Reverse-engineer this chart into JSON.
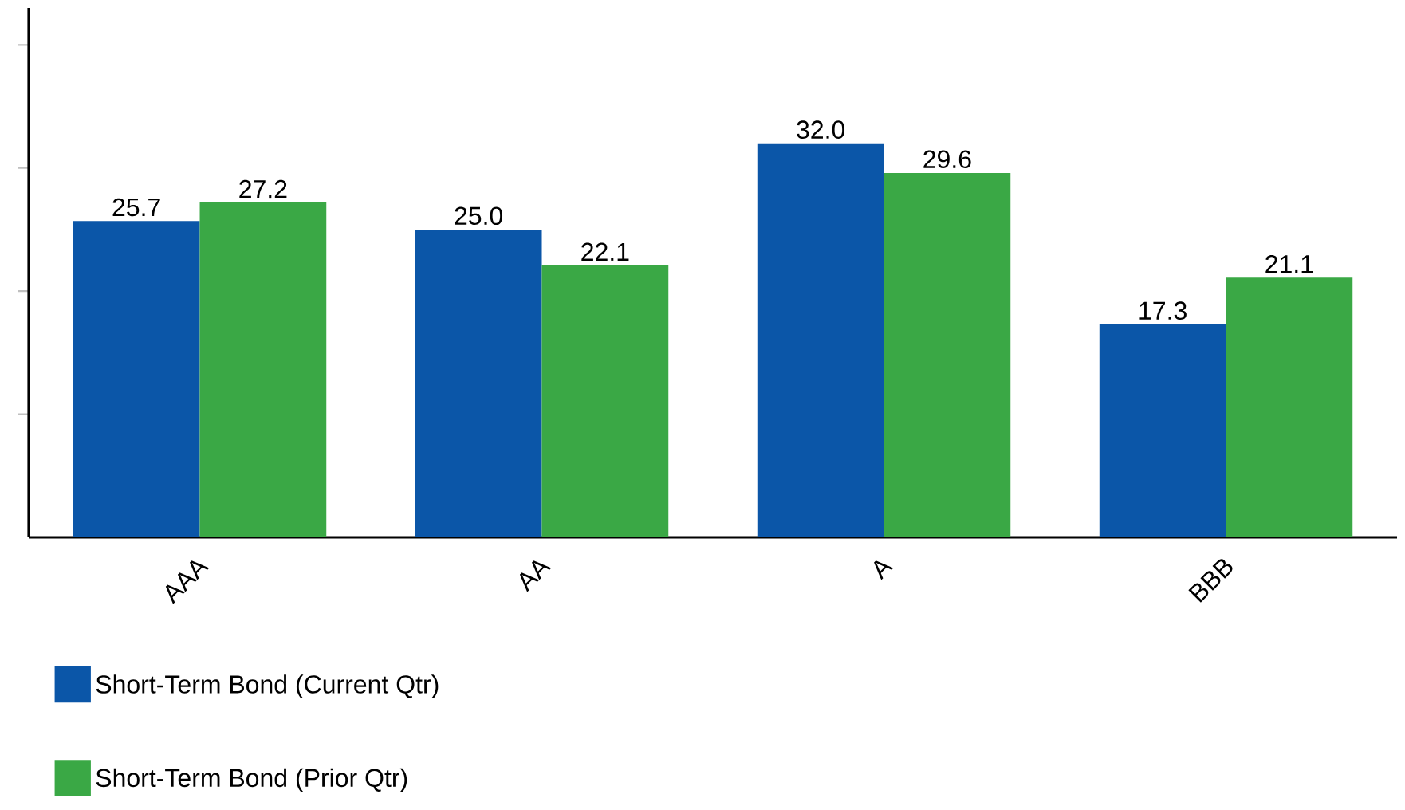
{
  "chart_data": {
    "type": "bar",
    "categories": [
      "AAA",
      "AA",
      "A",
      "BBB"
    ],
    "series": [
      {
        "name": "Short-Term Bond (Current Qtr)",
        "color": "#0b56a8",
        "values": [
          25.7,
          25.0,
          32.0,
          17.3
        ],
        "value_labels": [
          "25.7",
          "25.0",
          "32.0",
          "17.3"
        ]
      },
      {
        "name": "Short-Term Bond (Prior Qtr)",
        "color": "#3aa845",
        "values": [
          27.2,
          22.1,
          29.6,
          21.1
        ],
        "value_labels": [
          "27.2",
          "22.1",
          "29.6",
          "21.1"
        ]
      }
    ],
    "ylim": [
      0,
      43
    ],
    "yticks": [
      {
        "value": 10,
        "label": null
      },
      {
        "value": 20,
        "label": null
      },
      {
        "value": 30,
        "label": null
      },
      {
        "value": 40,
        "label": null
      }
    ],
    "tick_labels": "x",
    "grid": false,
    "legend": "bottom"
  }
}
